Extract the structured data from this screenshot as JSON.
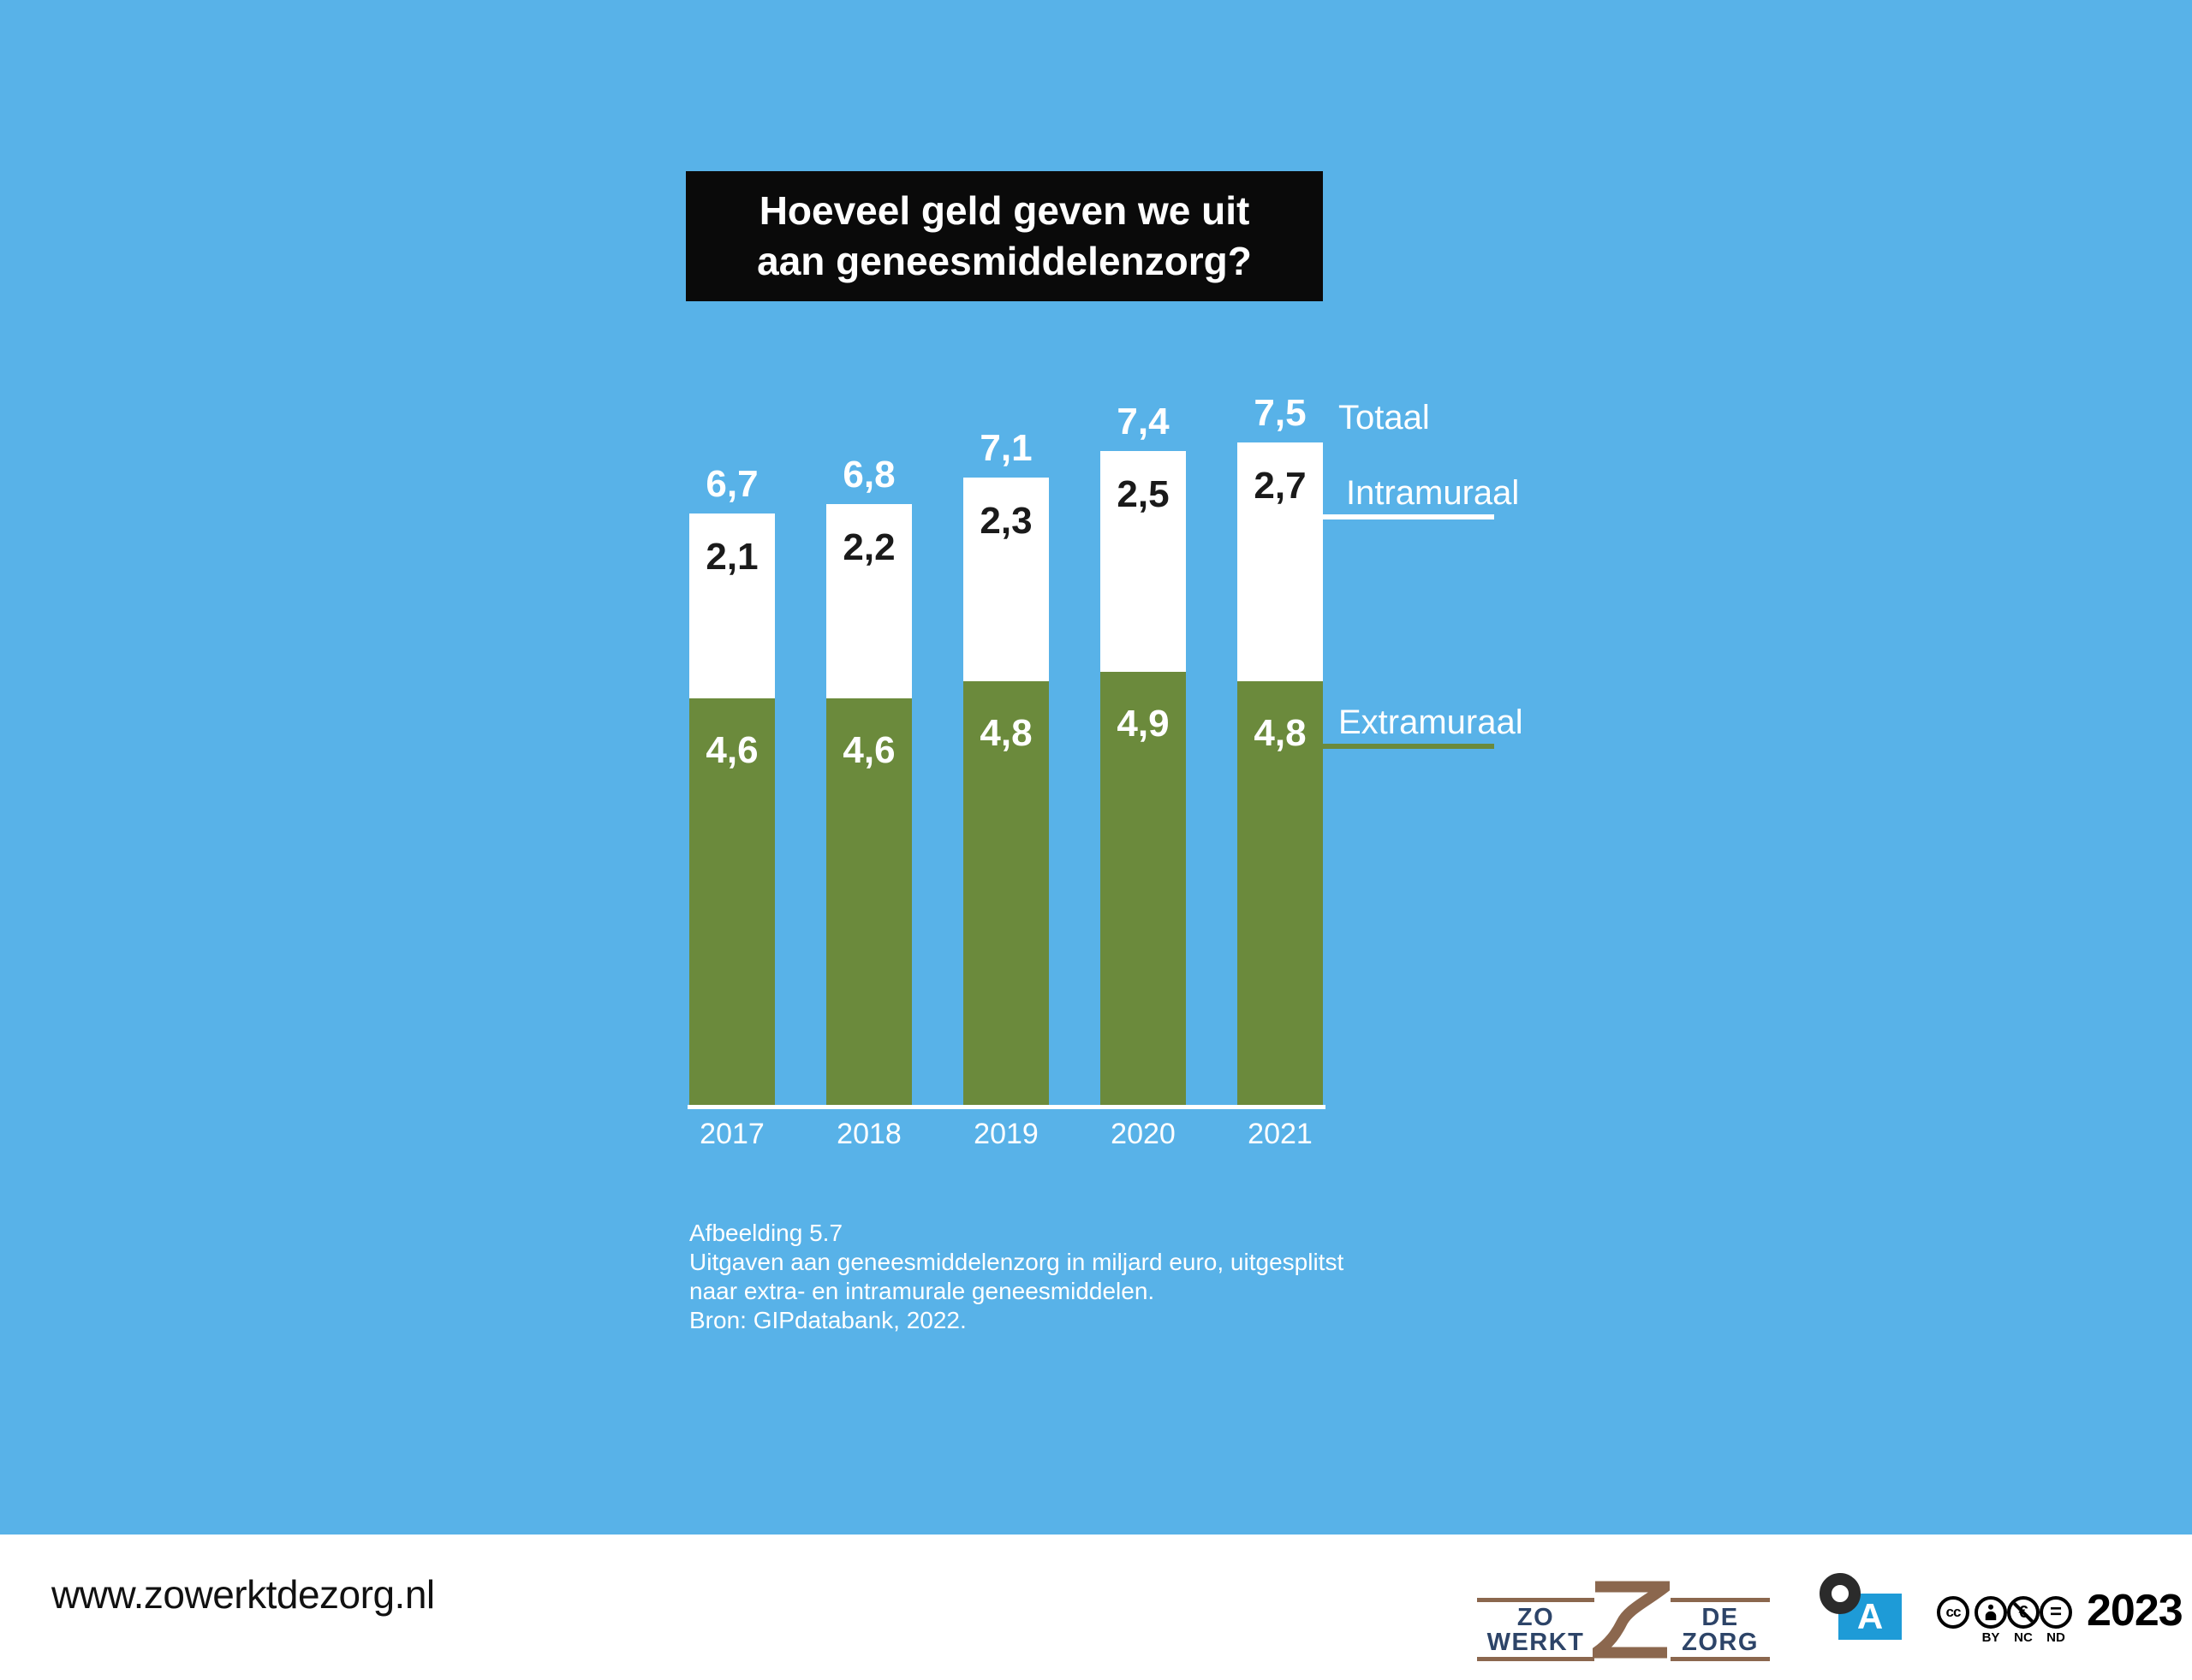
{
  "title": "Hoeveel geld geven we uit aan geneesmiddelenzorg?",
  "chart_data": {
    "type": "bar",
    "stacked": true,
    "title": "Hoeveel geld geven we uit aan geneesmiddelenzorg?",
    "categories": [
      "2017",
      "2018",
      "2019",
      "2020",
      "2021"
    ],
    "series": [
      {
        "name": "Extramuraal",
        "color": "#6b8a3c",
        "label_color": "#ffffff",
        "values": [
          4.6,
          4.6,
          4.8,
          4.9,
          4.8
        ],
        "labels": [
          "4,6",
          "4,6",
          "4,8",
          "4,9",
          "4,8"
        ]
      },
      {
        "name": "Intramuraal",
        "color": "#ffffff",
        "label_color": "#1a1a1a",
        "values": [
          2.1,
          2.2,
          2.3,
          2.5,
          2.7
        ],
        "labels": [
          "2,1",
          "2,2",
          "2,3",
          "2,5",
          "2,7"
        ]
      }
    ],
    "totals": {
      "name": "Totaal",
      "values": [
        6.7,
        6.8,
        7.1,
        7.4,
        7.5
      ],
      "labels": [
        "6,7",
        "6,8",
        "7,1",
        "7,4",
        "7,5"
      ]
    },
    "unit": "miljard euro",
    "ylim": [
      0,
      7.5
    ],
    "grid": false,
    "legend_position": "right"
  },
  "legend": {
    "totaal": "Totaal",
    "intramuraal": "Intramuraal",
    "extramuraal": "Extramuraal"
  },
  "caption": {
    "lines": [
      "Afbeelding 5.7",
      "Uitgaven aan geneesmiddelenzorg in miljard euro, uitgesplitst",
      "naar extra- en intramurale geneesmiddelen.",
      "Bron: GIPdatabank, 2022."
    ]
  },
  "footer": {
    "website": "www.zowerktdezorg.nl",
    "logo": {
      "left": "ZO WERKT",
      "right": "DE ZORG",
      "numeral": "2"
    },
    "open_access": {
      "letter": "A"
    },
    "license": {
      "cc": "cc",
      "nc_symbol": "€",
      "nd_symbol": "=",
      "labels": [
        "BY",
        "NC",
        "ND"
      ]
    },
    "year": "2023"
  },
  "colors": {
    "background": "#58b2e8",
    "bar_green": "#6b8a3c",
    "bar_white": "#ffffff",
    "title_bg": "#0a0a0a",
    "title_text": "#ffffff",
    "legend_line_intra": "#ffffff",
    "legend_line_extra": "#6b8a3c",
    "axis_line": "#ffffff",
    "logo_brown": "#8b674e",
    "logo_navy": "#2d4468",
    "open_access_blue": "#1e9bd7",
    "footer_bg": "#ffffff"
  }
}
